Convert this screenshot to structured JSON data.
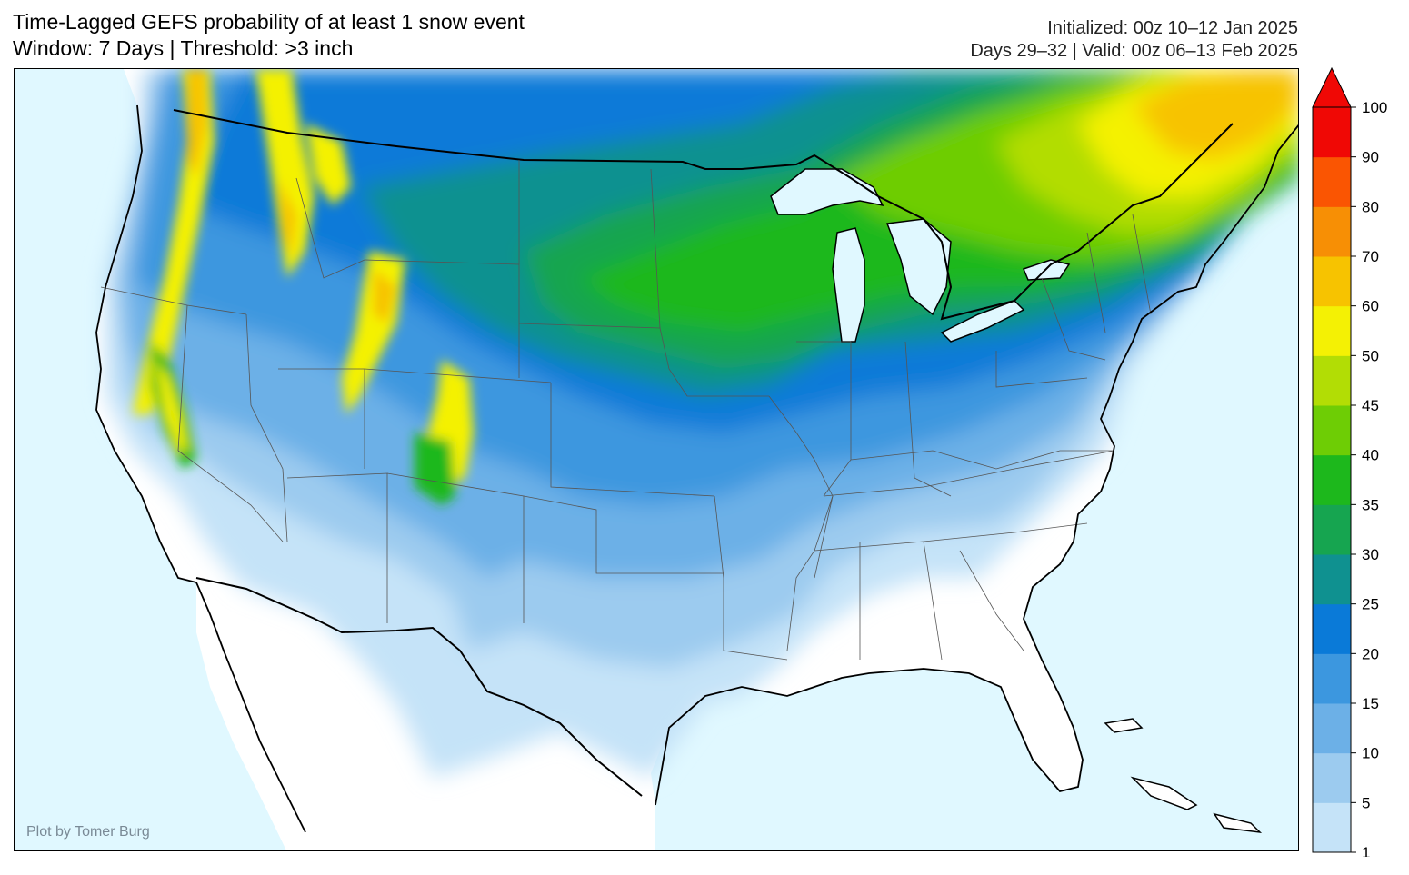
{
  "title": {
    "line1": "Time-Lagged GEFS probability of at least 1 snow event",
    "line2": "Window: 7 Days | Threshold: >3 inch"
  },
  "meta": {
    "initialized": "Initialized: 00z 10–12 Jan 2025",
    "valid": "Days 29–32 | Valid: 00z 06–13 Feb 2025"
  },
  "credit": "Plot by Tomer Burg",
  "colors": {
    "ocean": "#e0f8ff",
    "land": "#ffffff",
    "border": "#000000"
  },
  "legend": {
    "levels": [
      "1",
      "5",
      "10",
      "15",
      "20",
      "25",
      "30",
      "35",
      "40",
      "45",
      "50",
      "60",
      "70",
      "80",
      "90",
      "100"
    ],
    "colors": [
      "#c5e3f8",
      "#9ccbef",
      "#6cb0e7",
      "#3c97df",
      "#0a7ad8",
      "#0f9190",
      "#16a550",
      "#1db81c",
      "#6ecd05",
      "#b2dd05",
      "#f4f104",
      "#f7c300",
      "#f78f05",
      "#fa5502",
      "#f00805"
    ],
    "extend": "max"
  }
}
